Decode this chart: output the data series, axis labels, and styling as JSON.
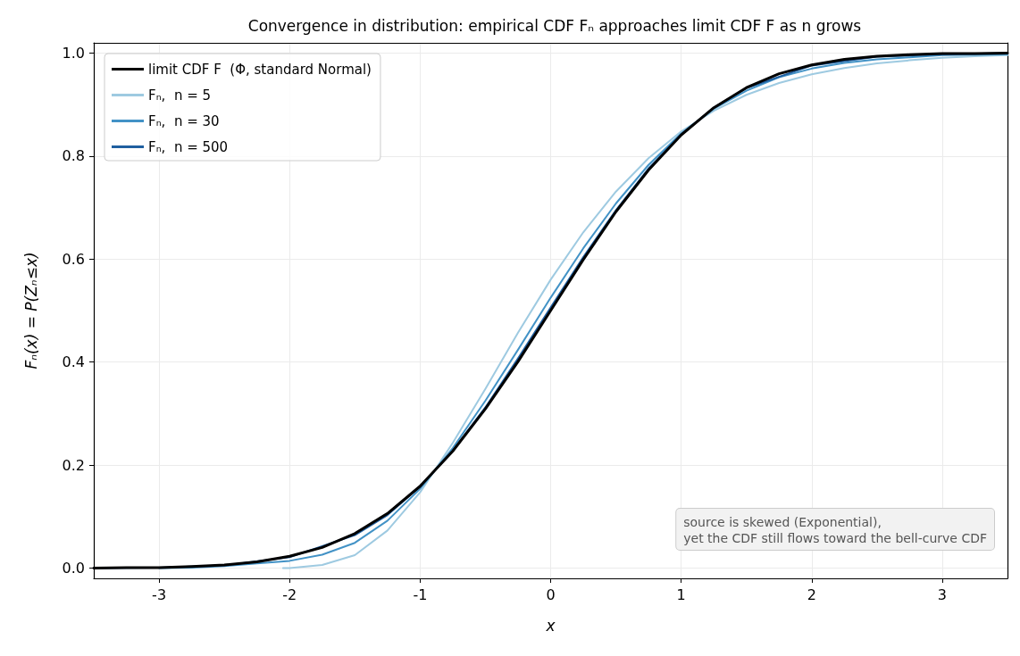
{
  "chart_data": {
    "type": "line",
    "title": "Convergence in distribution: empirical CDF Fₙ approaches limit CDF F as n grows",
    "xlabel": "x",
    "ylabel": "Fₙ(x) = P(Zₙ≤x)",
    "xlim": [
      -3.5,
      3.5
    ],
    "xticks": [
      {
        "value": -3,
        "label": "-3"
      },
      {
        "value": -2,
        "label": "-2"
      },
      {
        "value": -1,
        "label": "-1"
      },
      0,
      1,
      2,
      3
    ],
    "ylim": [
      -0.02,
      1.02
    ],
    "yticks": [
      {
        "value": 0,
        "label": "0.0"
      },
      {
        "value": 0.2,
        "label": "0.2"
      },
      {
        "value": 0.4,
        "label": "0.4"
      },
      {
        "value": 0.6,
        "label": "0.6"
      },
      {
        "value": 0.8,
        "label": "0.8"
      },
      {
        "value": 1,
        "label": "1.0"
      }
    ],
    "grid": true,
    "legend": "top left",
    "marker": "none",
    "line_style": "solid",
    "annotations": [
      "source is skewed (Exponential),\nyet the CDF still flows toward the bell-curve CDF"
    ],
    "series": [
      {
        "name": "limit CDF F  (Φ, standard Normal)",
        "color": "#000000",
        "x": [
          -3.5,
          -3.25,
          -3,
          -2.75,
          -2.5,
          -2.25,
          -2,
          -1.75,
          -1.5,
          -1.25,
          -1,
          -0.75,
          -0.5,
          -0.25,
          0,
          0.25,
          0.5,
          0.75,
          1,
          1.25,
          1.5,
          1.75,
          2,
          2.25,
          2.5,
          2.75,
          3,
          3.25,
          3.5
        ],
        "values": [
          0,
          0.001,
          0.001,
          0.003,
          0.006,
          0.012,
          0.023,
          0.04,
          0.067,
          0.106,
          0.159,
          0.227,
          0.309,
          0.401,
          0.5,
          0.599,
          0.692,
          0.773,
          0.841,
          0.894,
          0.933,
          0.96,
          0.977,
          0.988,
          0.994,
          0.997,
          0.999,
          0.999,
          1.0
        ]
      },
      {
        "name": "Fₙ,  n = 5",
        "color": "#9ecae1",
        "x": [
          -2.05,
          -2,
          -1.75,
          -1.5,
          -1.25,
          -1,
          -0.75,
          -0.5,
          -0.25,
          0,
          0.25,
          0.5,
          0.75,
          1,
          1.25,
          1.5,
          1.75,
          2,
          2.25,
          2.5,
          2.75,
          3,
          3.25,
          3.5
        ],
        "values": [
          0,
          0,
          0.006,
          0.025,
          0.073,
          0.147,
          0.243,
          0.348,
          0.457,
          0.56,
          0.652,
          0.731,
          0.796,
          0.848,
          0.888,
          0.919,
          0.942,
          0.959,
          0.971,
          0.98,
          0.986,
          0.991,
          0.994,
          0.996
        ]
      },
      {
        "name": "Fₙ,  n = 30",
        "color": "#4292c6",
        "x": [
          -3,
          -2.75,
          -2.5,
          -2.25,
          -2,
          -1.75,
          -1.5,
          -1.25,
          -1,
          -0.75,
          -0.5,
          -0.25,
          0,
          0.25,
          0.5,
          0.75,
          1,
          1.25,
          1.5,
          1.75,
          2,
          2.25,
          2.5,
          2.75,
          3,
          3.25,
          3.5
        ],
        "values": [
          0,
          0.001,
          0.004,
          0.009,
          0.014,
          0.026,
          0.049,
          0.092,
          0.154,
          0.233,
          0.325,
          0.424,
          0.525,
          0.621,
          0.708,
          0.783,
          0.844,
          0.892,
          0.927,
          0.953,
          0.97,
          0.981,
          0.988,
          0.992,
          0.996,
          0.997,
          0.998
        ]
      },
      {
        "name": "Fₙ,  n = 500",
        "color": "#1f5fa0",
        "x": [
          -3.5,
          -3,
          -2.5,
          -2,
          -1.5,
          -1.25,
          -1,
          -0.75,
          -0.5,
          -0.25,
          0,
          0.25,
          0.5,
          0.75,
          1,
          1.25,
          1.5,
          2,
          2.5,
          3,
          3.5
        ],
        "values": [
          0,
          0.001,
          0.005,
          0.021,
          0.064,
          0.103,
          0.158,
          0.228,
          0.312,
          0.407,
          0.506,
          0.604,
          0.695,
          0.776,
          0.842,
          0.894,
          0.932,
          0.976,
          0.993,
          0.998,
          1.0
        ]
      }
    ]
  }
}
